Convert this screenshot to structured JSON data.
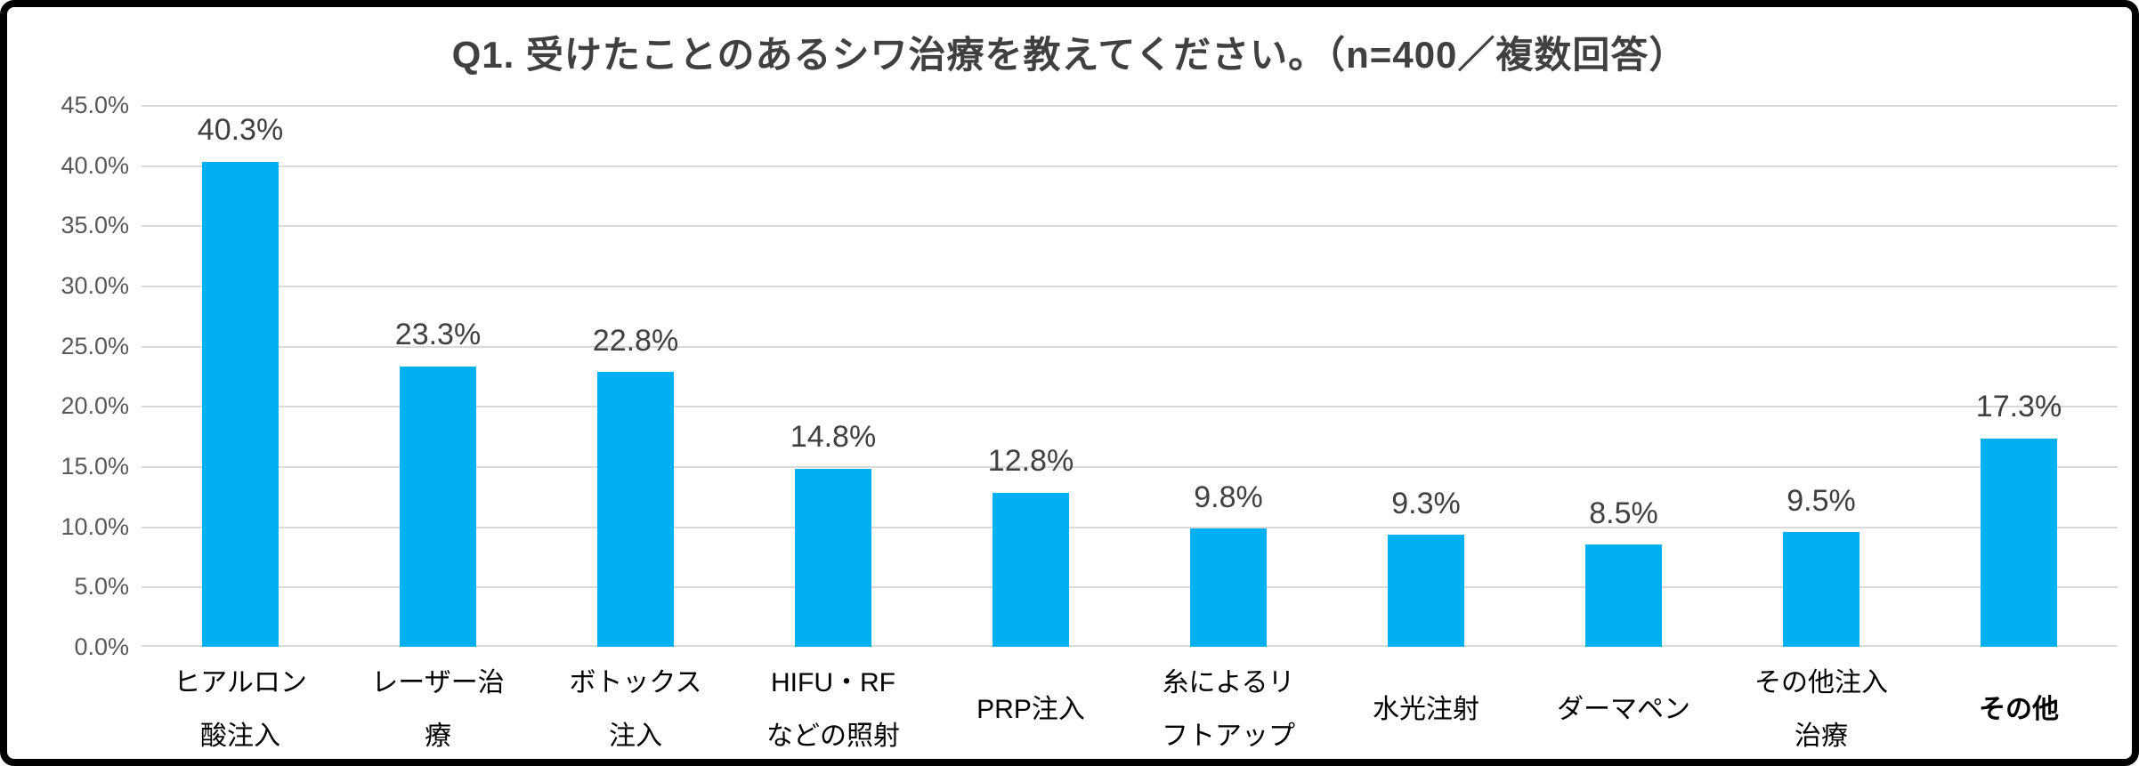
{
  "title": "Q1. 受けたことのあるシワ治療を教えてください。（n=400／複数回答）",
  "colors": {
    "bar": "#00B0F0",
    "grid": "#D9D9D9",
    "title_text": "#404040",
    "value_label_text": "#404040",
    "y_tick_text": "#595959",
    "x_tick_text": "#000000",
    "border": "#000000"
  },
  "y_axis": {
    "ticks": [
      "45.0%",
      "40.0%",
      "35.0%",
      "30.0%",
      "25.0%",
      "20.0%",
      "15.0%",
      "10.0%",
      "5.0%",
      "0.0%"
    ]
  },
  "chart_data": {
    "type": "bar",
    "title": "Q1. 受けたことのあるシワ治療を教えてください。（n=400／複数回答）",
    "xlabel": "",
    "ylabel": "",
    "ylim": [
      0,
      45
    ],
    "ytick_step": 5,
    "grid": "horizontal",
    "legend": "none",
    "bar_color": "#00B0F0",
    "n": 400,
    "categories": [
      "ヒアルロン酸注入",
      "レーザー治療",
      "ボトックス注入",
      "HIFU・RFなどの照射",
      "PRP注入",
      "糸によるリフトアップ",
      "水光注射",
      "ダーマペン",
      "その他注入治療",
      "その他"
    ],
    "values": [
      40.3,
      23.3,
      22.8,
      14.8,
      12.8,
      9.8,
      9.3,
      8.5,
      9.5,
      17.3
    ],
    "value_labels": [
      "40.3%",
      "23.3%",
      "22.8%",
      "14.8%",
      "12.8%",
      "9.8%",
      "9.3%",
      "8.5%",
      "9.5%",
      "17.3%"
    ],
    "category_labels": [
      {
        "text": "ヒアルロン\n酸注入",
        "bold": false
      },
      {
        "text": "レーザー治\n療",
        "bold": false
      },
      {
        "text": "ボトックス\n注入",
        "bold": false
      },
      {
        "text": "HIFU・RF\nなどの照射",
        "bold": false
      },
      {
        "text": "PRP注入",
        "bold": false
      },
      {
        "text": "糸によるリ\nフトアップ",
        "bold": false
      },
      {
        "text": "水光注射",
        "bold": false
      },
      {
        "text": "ダーマペン",
        "bold": false
      },
      {
        "text": "その他注入\n治療",
        "bold": false
      },
      {
        "text": "その他",
        "bold": true
      }
    ]
  }
}
